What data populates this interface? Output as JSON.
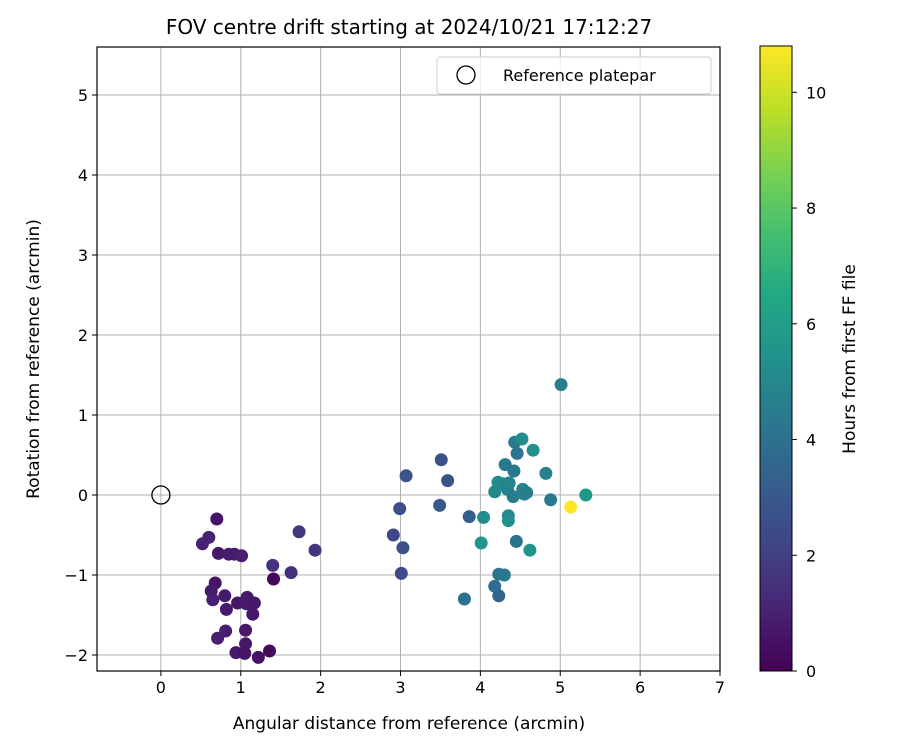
{
  "chart_data": {
    "type": "scatter",
    "title": "FOV centre drift starting at 2024/10/21 17:12:27",
    "xlabel": "Angular distance from reference (arcmin)",
    "ylabel": "Rotation from reference (arcmin)",
    "xlim": [
      -0.8,
      7.0
    ],
    "ylim": [
      -2.2,
      5.6
    ],
    "xticks": [
      0,
      1,
      2,
      3,
      4,
      5,
      6,
      7
    ],
    "yticks": [
      -2,
      -1,
      0,
      1,
      2,
      3,
      4,
      5
    ],
    "grid": true,
    "legend": {
      "placement": "upper-right",
      "entries": [
        "Reference platepar"
      ]
    },
    "colorbar": {
      "label": "Hours from first FF file",
      "range": [
        0,
        10.8
      ],
      "ticks": [
        0,
        2,
        4,
        6,
        8,
        10
      ],
      "colormap": "viridis"
    },
    "reference_point": {
      "x": 0,
      "y": 0,
      "name": "Reference platepar"
    },
    "points": [
      {
        "x": 0.7,
        "y": -0.3,
        "hours": 0.6
      },
      {
        "x": 0.6,
        "y": -0.53,
        "hours": 1.0
      },
      {
        "x": 0.52,
        "y": -0.61,
        "hours": 1.0
      },
      {
        "x": 0.72,
        "y": -0.73,
        "hours": 0.7
      },
      {
        "x": 0.85,
        "y": -0.74,
        "hours": 0.8
      },
      {
        "x": 0.92,
        "y": -0.74,
        "hours": 0.8
      },
      {
        "x": 1.01,
        "y": -0.76,
        "hours": 0.9
      },
      {
        "x": 0.68,
        "y": -1.1,
        "hours": 0.6
      },
      {
        "x": 0.63,
        "y": -1.2,
        "hours": 0.8
      },
      {
        "x": 0.65,
        "y": -1.31,
        "hours": 0.9
      },
      {
        "x": 0.8,
        "y": -1.26,
        "hours": 0.8
      },
      {
        "x": 0.82,
        "y": -1.43,
        "hours": 0.8
      },
      {
        "x": 0.96,
        "y": -1.35,
        "hours": 0.7
      },
      {
        "x": 1.08,
        "y": -1.28,
        "hours": 0.8
      },
      {
        "x": 1.07,
        "y": -1.36,
        "hours": 0.8
      },
      {
        "x": 1.17,
        "y": -1.35,
        "hours": 0.7
      },
      {
        "x": 1.15,
        "y": -1.49,
        "hours": 0.7
      },
      {
        "x": 0.71,
        "y": -1.79,
        "hours": 0.9
      },
      {
        "x": 0.81,
        "y": -1.7,
        "hours": 0.9
      },
      {
        "x": 1.06,
        "y": -1.69,
        "hours": 0.7
      },
      {
        "x": 1.06,
        "y": -1.86,
        "hours": 0.7
      },
      {
        "x": 0.94,
        "y": -1.97,
        "hours": 0.8
      },
      {
        "x": 1.05,
        "y": -1.98,
        "hours": 0.6
      },
      {
        "x": 1.22,
        "y": -2.03,
        "hours": 0.5
      },
      {
        "x": 1.36,
        "y": -1.95,
        "hours": 0.3
      },
      {
        "x": 1.41,
        "y": -1.05,
        "hours": 0.2
      },
      {
        "x": 1.4,
        "y": -0.88,
        "hours": 1.6
      },
      {
        "x": 1.63,
        "y": -0.97,
        "hours": 1.5
      },
      {
        "x": 1.73,
        "y": -0.46,
        "hours": 1.7
      },
      {
        "x": 1.93,
        "y": -0.69,
        "hours": 1.6
      },
      {
        "x": 2.91,
        "y": -0.5,
        "hours": 2.3
      },
      {
        "x": 2.99,
        "y": -0.17,
        "hours": 2.6
      },
      {
        "x": 3.07,
        "y": 0.24,
        "hours": 2.7
      },
      {
        "x": 3.03,
        "y": -0.66,
        "hours": 2.6
      },
      {
        "x": 3.01,
        "y": -0.98,
        "hours": 2.5
      },
      {
        "x": 3.51,
        "y": 0.44,
        "hours": 2.8
      },
      {
        "x": 3.59,
        "y": 0.18,
        "hours": 2.8
      },
      {
        "x": 3.49,
        "y": -0.13,
        "hours": 3.0
      },
      {
        "x": 3.86,
        "y": -0.27,
        "hours": 3.3
      },
      {
        "x": 3.8,
        "y": -1.3,
        "hours": 4.0
      },
      {
        "x": 4.04,
        "y": -0.28,
        "hours": 5.2
      },
      {
        "x": 4.01,
        "y": -0.6,
        "hours": 5.6
      },
      {
        "x": 4.18,
        "y": -1.14,
        "hours": 3.9
      },
      {
        "x": 4.23,
        "y": -0.99,
        "hours": 4.1
      },
      {
        "x": 4.3,
        "y": -1.0,
        "hours": 4.3
      },
      {
        "x": 4.23,
        "y": -1.26,
        "hours": 3.5
      },
      {
        "x": 4.18,
        "y": 0.04,
        "hours": 5.0
      },
      {
        "x": 4.22,
        "y": 0.16,
        "hours": 5.2
      },
      {
        "x": 4.28,
        "y": 0.14,
        "hours": 5.0
      },
      {
        "x": 4.31,
        "y": 0.38,
        "hours": 4.4
      },
      {
        "x": 4.34,
        "y": 0.07,
        "hours": 4.8
      },
      {
        "x": 4.36,
        "y": 0.15,
        "hours": 4.9
      },
      {
        "x": 4.35,
        "y": -0.26,
        "hours": 5.0
      },
      {
        "x": 4.35,
        "y": -0.32,
        "hours": 5.3
      },
      {
        "x": 4.41,
        "y": -0.02,
        "hours": 4.5
      },
      {
        "x": 4.42,
        "y": 0.3,
        "hours": 4.3
      },
      {
        "x": 4.43,
        "y": 0.66,
        "hours": 4.4
      },
      {
        "x": 4.46,
        "y": 0.52,
        "hours": 4.2
      },
      {
        "x": 4.45,
        "y": -0.58,
        "hours": 4.1
      },
      {
        "x": 4.52,
        "y": 0.7,
        "hours": 5.2
      },
      {
        "x": 4.53,
        "y": 0.07,
        "hours": 4.9
      },
      {
        "x": 4.55,
        "y": 0.01,
        "hours": 4.7
      },
      {
        "x": 4.58,
        "y": 0.03,
        "hours": 4.6
      },
      {
        "x": 4.62,
        "y": -0.69,
        "hours": 5.5
      },
      {
        "x": 4.66,
        "y": 0.56,
        "hours": 5.4
      },
      {
        "x": 4.82,
        "y": 0.27,
        "hours": 4.7
      },
      {
        "x": 4.88,
        "y": -0.06,
        "hours": 4.4
      },
      {
        "x": 5.01,
        "y": 1.38,
        "hours": 4.6
      },
      {
        "x": 5.32,
        "y": 0.0,
        "hours": 5.7
      },
      {
        "x": 5.13,
        "y": -0.15,
        "hours": 10.8
      }
    ]
  }
}
